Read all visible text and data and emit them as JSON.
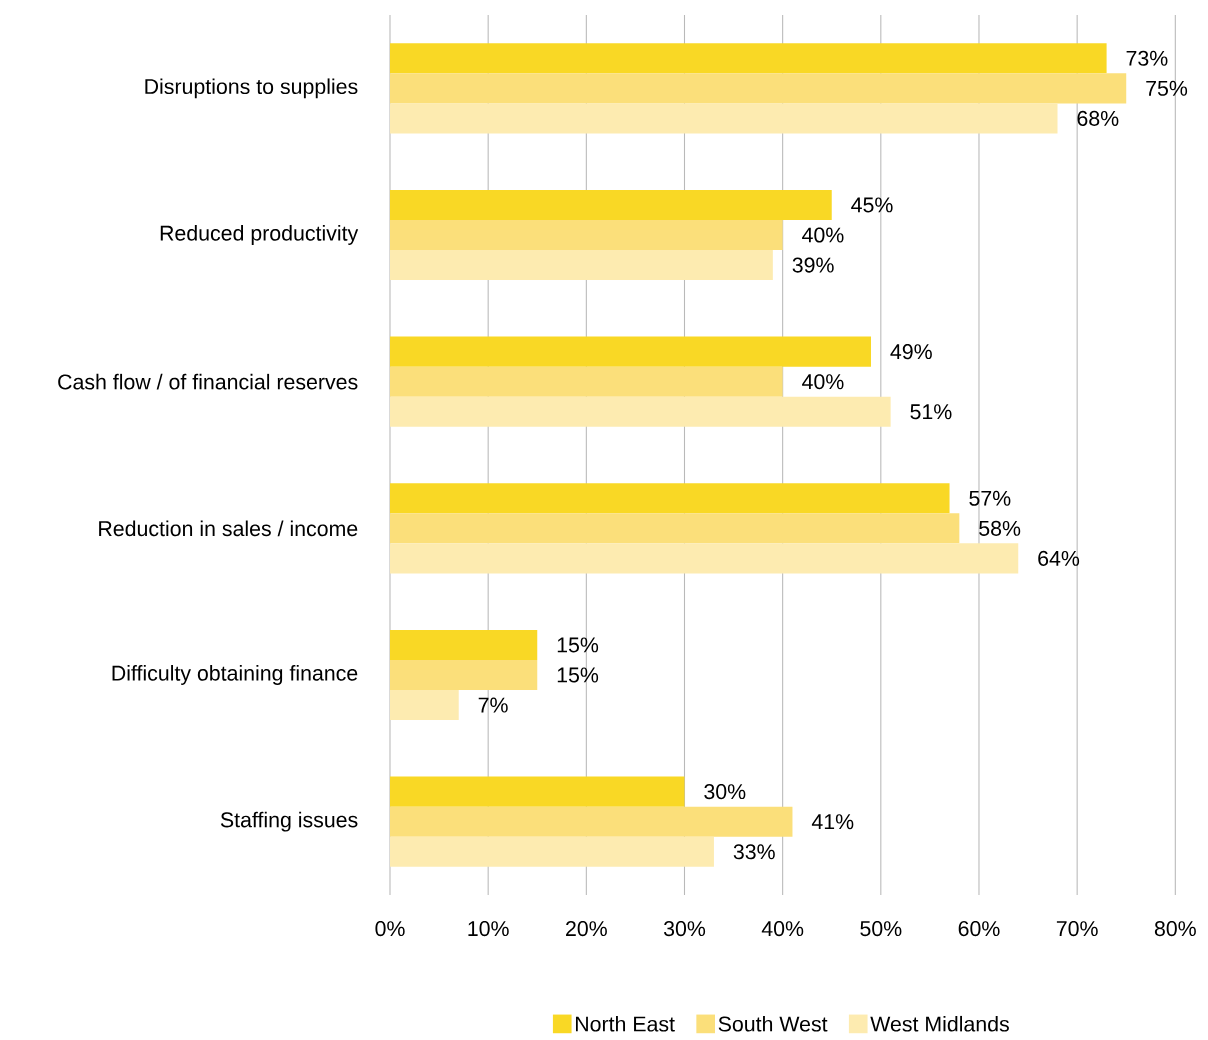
{
  "chart_data": {
    "type": "bar",
    "orientation": "horizontal",
    "categories": [
      "Disruptions to supplies",
      "Reduced productivity",
      "Cash flow / of financial reserves",
      "Reduction in sales / income",
      "Difficulty obtaining finance",
      "Staffing issues"
    ],
    "series": [
      {
        "name": "North East",
        "color": "#f9d825",
        "values": [
          73,
          45,
          49,
          57,
          15,
          30
        ],
        "value_labels": [
          "73%",
          "45%",
          "49%",
          "57%",
          "15%",
          "30%"
        ]
      },
      {
        "name": "South West",
        "color": "#fbdf7a",
        "values": [
          75,
          40,
          40,
          58,
          15,
          41
        ],
        "value_labels": [
          "75%",
          "40%",
          "40%",
          "58%",
          "15%",
          "41%"
        ]
      },
      {
        "name": "West Midlands",
        "color": "#fdebb0",
        "values": [
          68,
          39,
          51,
          64,
          7,
          33
        ],
        "value_labels": [
          "68%",
          "39%",
          "51%",
          "64%",
          "7%",
          "33%"
        ]
      }
    ],
    "xlim": [
      0,
      80
    ],
    "xticks": [
      {
        "value": 0,
        "label": "0%"
      },
      {
        "value": 10,
        "label": "10%"
      },
      {
        "value": 20,
        "label": "20%"
      },
      {
        "value": 30,
        "label": "30%"
      },
      {
        "value": 40,
        "label": "40%"
      },
      {
        "value": 50,
        "label": "50%"
      },
      {
        "value": 60,
        "label": "60%"
      },
      {
        "value": 70,
        "label": "70%"
      },
      {
        "value": 80,
        "label": "80%"
      }
    ],
    "grid": "x",
    "legend": "bottom"
  }
}
